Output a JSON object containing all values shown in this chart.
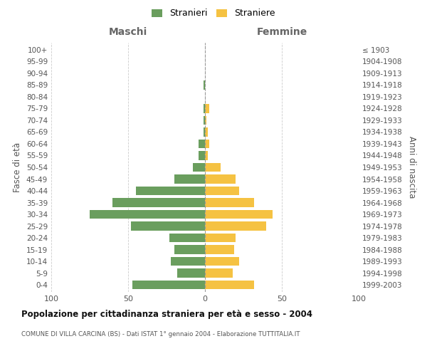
{
  "age_groups": [
    "0-4",
    "5-9",
    "10-14",
    "15-19",
    "20-24",
    "25-29",
    "30-34",
    "35-39",
    "40-44",
    "45-49",
    "50-54",
    "55-59",
    "60-64",
    "65-69",
    "70-74",
    "75-79",
    "80-84",
    "85-89",
    "90-94",
    "95-99",
    "100+"
  ],
  "birth_years": [
    "1999-2003",
    "1994-1998",
    "1989-1993",
    "1984-1988",
    "1979-1983",
    "1974-1978",
    "1969-1973",
    "1964-1968",
    "1959-1963",
    "1954-1958",
    "1949-1953",
    "1944-1948",
    "1939-1943",
    "1934-1938",
    "1929-1933",
    "1924-1928",
    "1919-1923",
    "1914-1918",
    "1909-1913",
    "1904-1908",
    "≤ 1903"
  ],
  "males": [
    47,
    18,
    22,
    20,
    23,
    48,
    75,
    60,
    45,
    20,
    8,
    4,
    4,
    1,
    1,
    1,
    0,
    1,
    0,
    0,
    0
  ],
  "females": [
    32,
    18,
    22,
    19,
    20,
    40,
    44,
    32,
    22,
    20,
    10,
    2,
    3,
    2,
    1,
    3,
    0,
    0,
    0,
    0,
    0
  ],
  "male_color": "#6a9e5e",
  "female_color": "#f5c242",
  "background_color": "#ffffff",
  "grid_color": "#cccccc",
  "title": "Popolazione per cittadinanza straniera per età e sesso - 2004",
  "subtitle": "COMUNE DI VILLA CARCINA (BS) - Dati ISTAT 1° gennaio 2004 - Elaborazione TUTTITALIA.IT",
  "xlabel_left": "Maschi",
  "xlabel_right": "Femmine",
  "ylabel_left": "Fasce di età",
  "ylabel_right": "Anni di nascita",
  "legend_male": "Stranieri",
  "legend_female": "Straniere",
  "xlim": 100
}
